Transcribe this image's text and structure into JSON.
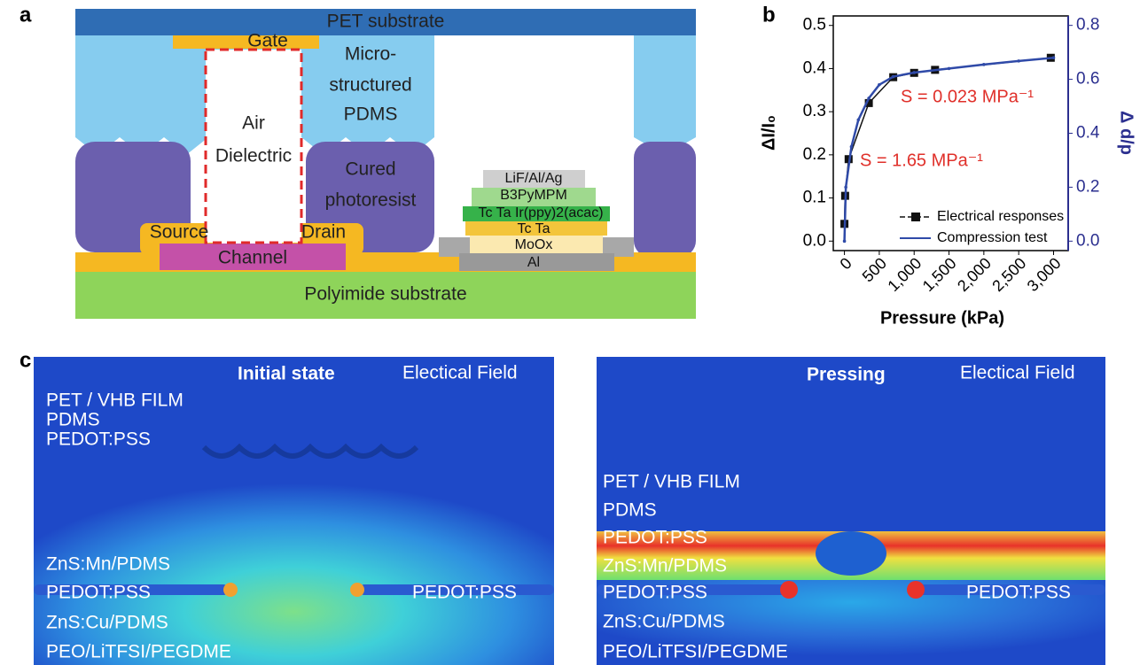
{
  "panel_a": {
    "letter": "a",
    "pet": "PET substrate",
    "gate": "Gate",
    "micro": "Micro-",
    "structured": "structured",
    "pdms": "PDMS",
    "air": "Air",
    "dielectric": "Dielectric",
    "cured": "Cured",
    "photoresist": "photoresist",
    "source": "Source",
    "drain": "Drain",
    "channel": "Channel",
    "polyimide": "Polyimide substrate",
    "stack": [
      "LiF/Al/Ag",
      "B3PyMPM",
      "Tc Ta Ir(ppy)2(acac)",
      "Tc Ta",
      "MoOx",
      "Al"
    ]
  },
  "chart_data": {
    "type": "line",
    "letter": "b",
    "x_label": "Pressure (kPa)",
    "y_label": "ΔI/I₀",
    "y2_label": "Δ d/p",
    "xlim": [
      -160,
      3210
    ],
    "xticks": [
      0,
      500,
      {
        "value": 1000,
        "label": "1,000"
      },
      {
        "value": 1500,
        "label": "1,500"
      },
      {
        "value": 2000,
        "label": "2,000"
      },
      {
        "value": 2500,
        "label": "2,500"
      },
      {
        "value": 3000,
        "label": "3,000"
      }
    ],
    "ylim": [
      -0.022,
      0.522
    ],
    "yticks": [
      {
        "value": 0,
        "label": "0.0"
      },
      0.1,
      0.2,
      0.3,
      0.4,
      0.5
    ],
    "y2lim": [
      -0.035,
      0.835
    ],
    "y2ticks": [
      {
        "value": 0,
        "label": "0.0"
      },
      0.2,
      0.4,
      0.6,
      0.8
    ],
    "y2_color": "#2b2f8f",
    "annotations": [
      {
        "text": "S = 0.023 MPa⁻¹",
        "color": "#e0302a"
      },
      {
        "text": "S = 1.65 MPa⁻¹",
        "color": "#e0302a"
      }
    ],
    "series": [
      {
        "name": "Electrical responses",
        "color": "#111111",
        "x": [
          0,
          10,
          60,
          350,
          700,
          1000,
          1300,
          2960
        ],
        "values": [
          0.04,
          0.105,
          0.19,
          0.32,
          0.38,
          0.39,
          0.397,
          0.425
        ]
      },
      {
        "name": "Compression test",
        "color": "#2f4aa8",
        "axis": "y2",
        "x": [
          0,
          20,
          100,
          200,
          350,
          500,
          700,
          1000,
          1500,
          2000,
          2500,
          3000
        ],
        "values": [
          0,
          0.2,
          0.35,
          0.45,
          0.53,
          0.58,
          0.61,
          0.625,
          0.64,
          0.655,
          0.668,
          0.68
        ]
      }
    ]
  },
  "panel_c": {
    "letter": "c",
    "left": {
      "title": "Initial state",
      "field": "Electical Field",
      "layers": [
        "PET / VHB FILM",
        "PDMS",
        "PEDOT:PSS",
        "ZnS:Mn/PDMS",
        "PEDOT:PSS",
        "PEDOT:PSS",
        "ZnS:Cu/PDMS",
        "PEO/LiTFSI/PEGDME"
      ]
    },
    "right": {
      "title": "Pressing",
      "field": "Electical Field",
      "layers": [
        "PET / VHB FILM",
        "PDMS",
        "PEDOT:PSS",
        "ZnS:Mn/PDMS",
        "PEDOT:PSS",
        "PEDOT:PSS",
        "ZnS:Cu/PDMS",
        "PEO/LiTFSI/PEGDME"
      ]
    }
  }
}
